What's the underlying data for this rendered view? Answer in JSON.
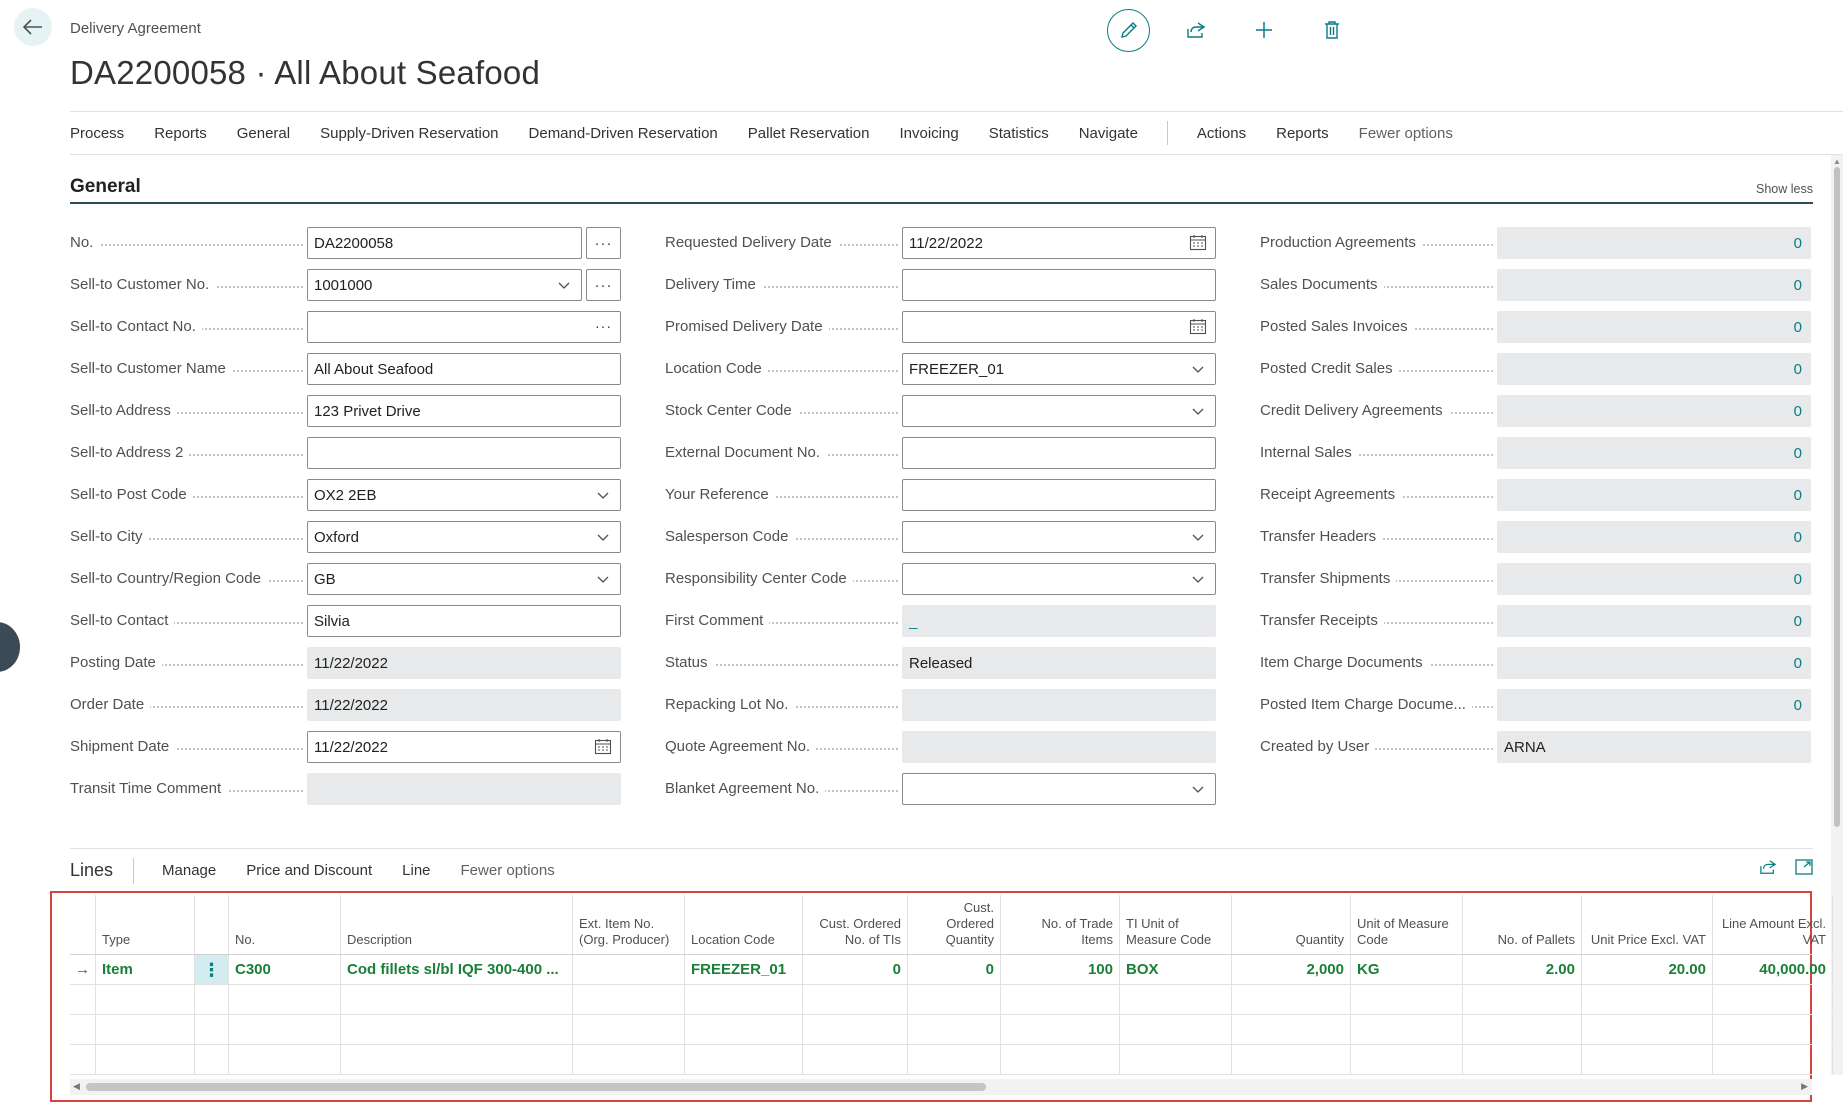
{
  "header": {
    "caption": "Delivery Agreement",
    "title": "DA2200058 · All About Seafood"
  },
  "action_bar": {
    "tabs": [
      "Process",
      "Reports",
      "General",
      "Supply-Driven Reservation",
      "Demand-Driven Reservation",
      "Pallet Reservation",
      "Invoicing",
      "Statistics",
      "Navigate"
    ],
    "secondary": [
      "Actions",
      "Reports"
    ],
    "fewer_options": "Fewer options"
  },
  "general": {
    "title": "General",
    "show_less": "Show less",
    "col1": [
      {
        "label": "No.",
        "value": "DA2200058",
        "assist": "···"
      },
      {
        "label": "Sell-to Customer No.",
        "value": "1001000",
        "assist": "···"
      },
      {
        "label": "Sell-to Contact No.",
        "value": "",
        "dots": "···"
      },
      {
        "label": "Sell-to Customer Name",
        "value": "All About Seafood"
      },
      {
        "label": "Sell-to Address",
        "value": "123 Privet Drive"
      },
      {
        "label": "Sell-to Address 2",
        "value": ""
      },
      {
        "label": "Sell-to Post Code",
        "value": "OX2 2EB"
      },
      {
        "label": "Sell-to City",
        "value": "Oxford"
      },
      {
        "label": "Sell-to Country/Region Code",
        "value": "GB"
      },
      {
        "label": "Sell-to Contact",
        "value": "Silvia"
      },
      {
        "label": "Posting Date",
        "value": "11/22/2022"
      },
      {
        "label": "Order Date",
        "value": "11/22/2022"
      },
      {
        "label": "Shipment Date",
        "value": "11/22/2022"
      },
      {
        "label": "Transit Time Comment",
        "value": ""
      }
    ],
    "col2": [
      {
        "label": "Requested Delivery Date",
        "value": "11/22/2022"
      },
      {
        "label": "Delivery Time",
        "value": ""
      },
      {
        "label": "Promised Delivery Date",
        "value": ""
      },
      {
        "label": "Location Code",
        "value": "FREEZER_01"
      },
      {
        "label": "Stock Center Code",
        "value": ""
      },
      {
        "label": "External Document No.",
        "value": ""
      },
      {
        "label": "Your Reference",
        "value": ""
      },
      {
        "label": "Salesperson Code",
        "value": ""
      },
      {
        "label": "Responsibility Center Code",
        "value": ""
      },
      {
        "label": "First Comment",
        "value": "_"
      },
      {
        "label": "Status",
        "value": "Released"
      },
      {
        "label": "Repacking Lot No.",
        "value": ""
      },
      {
        "label": "Quote Agreement No.",
        "value": ""
      },
      {
        "label": "Blanket Agreement No.",
        "value": ""
      }
    ],
    "col3": [
      {
        "label": "Production Agreements",
        "value": "0"
      },
      {
        "label": "Sales Documents",
        "value": "0"
      },
      {
        "label": "Posted Sales Invoices",
        "value": "0"
      },
      {
        "label": "Posted Credit Sales",
        "value": "0"
      },
      {
        "label": "Credit Delivery Agreements",
        "value": "0"
      },
      {
        "label": "Internal Sales",
        "value": "0"
      },
      {
        "label": "Receipt Agreements",
        "value": "0"
      },
      {
        "label": "Transfer Headers",
        "value": "0"
      },
      {
        "label": "Transfer Shipments",
        "value": "0"
      },
      {
        "label": "Transfer Receipts",
        "value": "0"
      },
      {
        "label": "Item Charge Documents",
        "value": "0"
      },
      {
        "label": "Posted Item Charge Docume...",
        "value": "0"
      },
      {
        "label": "Created by User",
        "value": "ARNA"
      }
    ]
  },
  "lines": {
    "title": "Lines",
    "tabs": [
      "Manage",
      "Price and Discount",
      "Line"
    ],
    "fewer_options": "Fewer options",
    "columns": [
      "Type",
      "No.",
      "Description",
      "Ext. Item No. (Org. Producer)",
      "Location Code",
      "Cust. Ordered No. of TIs",
      "Cust. Ordered Quantity",
      "No. of Trade Items",
      "TI Unit of Measure Code",
      "Quantity",
      "Unit of Measure Code",
      "No. of Pallets",
      "Unit Price Excl. VAT",
      "Line Amount Excl. VAT"
    ],
    "row": {
      "type": "Item",
      "no": "C300",
      "description": "Cod fillets sl/bl IQF 300-400 ...",
      "ext_item_no": "",
      "location_code": "FREEZER_01",
      "cust_ordered_tis": "0",
      "cust_ordered_qty": "0",
      "no_trade_items": "100",
      "ti_uom": "BOX",
      "quantity": "2,000",
      "uom": "KG",
      "no_pallets": "2.00",
      "unit_price": "20.00",
      "line_amount": "40,000.00"
    }
  }
}
